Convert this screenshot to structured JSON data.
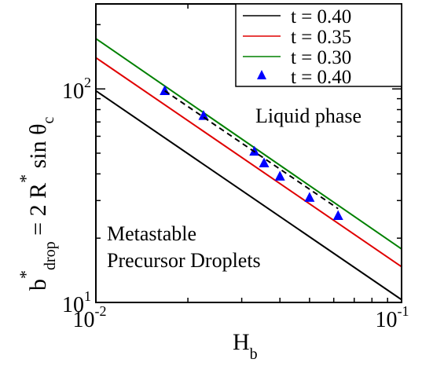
{
  "chart_data": {
    "type": "line",
    "title": "",
    "xlabel": {
      "base": "H",
      "sub": "b"
    },
    "ylabel": {
      "parts": [
        "b",
        "*",
        "drop",
        " = 2 R",
        "*",
        " sin θ",
        "c"
      ]
    },
    "xscale": "log",
    "yscale": "log",
    "xlim": [
      0.01,
      0.1
    ],
    "ylim": [
      10,
      250
    ],
    "x_tick_labels": [
      {
        "value": 0.01,
        "base": "10",
        "exp": "-2"
      },
      {
        "value": 0.1,
        "base": "10",
        "exp": "-1"
      }
    ],
    "y_tick_labels": [
      {
        "value": 10,
        "base": "10",
        "exp": "1"
      },
      {
        "value": 100,
        "base": "10",
        "exp": "2"
      }
    ],
    "grid": false,
    "legend_position": "top-right",
    "series": [
      {
        "name": "t = 0.40",
        "style": "line",
        "color": "#000000",
        "x": [
          0.01,
          0.1
        ],
        "y": [
          98,
          10.3
        ]
      },
      {
        "name": "t = 0.35",
        "style": "line",
        "color": "#e00000",
        "x": [
          0.01,
          0.1
        ],
        "y": [
          140,
          14.7
        ]
      },
      {
        "name": "t = 0.30",
        "style": "line",
        "color": "#008000",
        "x": [
          0.01,
          0.1
        ],
        "y": [
          172,
          17.8
        ]
      },
      {
        "name": "t = 0.40",
        "style": "markers",
        "marker": "triangle",
        "color": "#0000ff",
        "x": [
          0.0168,
          0.0225,
          0.033,
          0.0355,
          0.04,
          0.05,
          0.062
        ],
        "y": [
          98,
          75,
          51,
          45,
          39,
          31,
          25.5
        ]
      },
      {
        "name": "",
        "style": "dashed",
        "color": "#000000",
        "x": [
          0.0168,
          0.062
        ],
        "y": [
          98,
          27.5
        ],
        "legend": false
      }
    ],
    "annotations": [
      {
        "text": "Liquid phase"
      },
      {
        "text": "Metastable"
      },
      {
        "text": "Precursor Droplets"
      }
    ]
  }
}
